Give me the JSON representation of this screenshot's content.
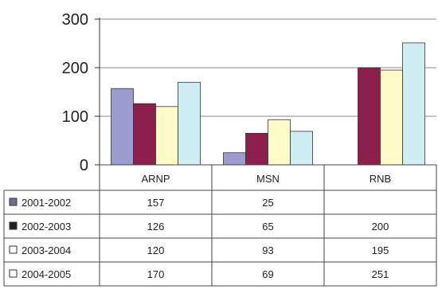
{
  "chart_data": {
    "type": "bar",
    "categories": [
      "ARNP",
      "MSN",
      "RNB"
    ],
    "series": [
      {
        "name": "2001-2002",
        "values": [
          157,
          25,
          null
        ],
        "color": "#9b9bcf",
        "marker": "■"
      },
      {
        "name": "2002-2003",
        "values": [
          126,
          65,
          200
        ],
        "color": "#8c1f4b",
        "marker": "■"
      },
      {
        "name": "2003-2004",
        "values": [
          120,
          93,
          195
        ],
        "color": "#fdfbc8",
        "marker": "□"
      },
      {
        "name": "2004-2005",
        "values": [
          170,
          69,
          251
        ],
        "color": "#cfeef3",
        "marker": "□"
      }
    ],
    "yticks": [
      0,
      100,
      200,
      300
    ],
    "ylim": [
      0,
      300
    ],
    "grid": true,
    "table": [
      [
        "157",
        "25",
        ""
      ],
      [
        "126",
        "65",
        "200"
      ],
      [
        "120",
        "93",
        "195"
      ],
      [
        "170",
        "69",
        "251"
      ]
    ]
  }
}
